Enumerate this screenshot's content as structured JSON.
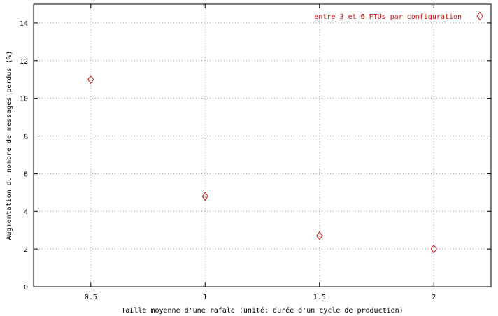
{
  "chart_data": {
    "type": "scatter",
    "title": "",
    "xlabel": "Taille moyenne d'une rafale (unité: durée d'un cycle de production)",
    "ylabel": "Augmentation du nombre de messages perdus (%)",
    "xlim": [
      0.25,
      2.25
    ],
    "ylim": [
      0,
      15
    ],
    "xticks": [
      0.5,
      1,
      1.5,
      2
    ],
    "xtick_labels": [
      "0.5",
      "1",
      "1.5",
      "2"
    ],
    "yticks": [
      0,
      2,
      4,
      6,
      8,
      10,
      12,
      14
    ],
    "ytick_labels": [
      "0",
      "2",
      "4",
      "6",
      "8",
      "10",
      "12",
      "14"
    ],
    "grid": true,
    "legend_position": "top-right",
    "series": [
      {
        "name": "entre 3 et 6 FTUs par configuration",
        "marker": "diamond",
        "color": "#d01010",
        "x": [
          0.5,
          1,
          1.5,
          2
        ],
        "y": [
          11.0,
          4.8,
          2.7,
          2.0
        ]
      }
    ]
  }
}
